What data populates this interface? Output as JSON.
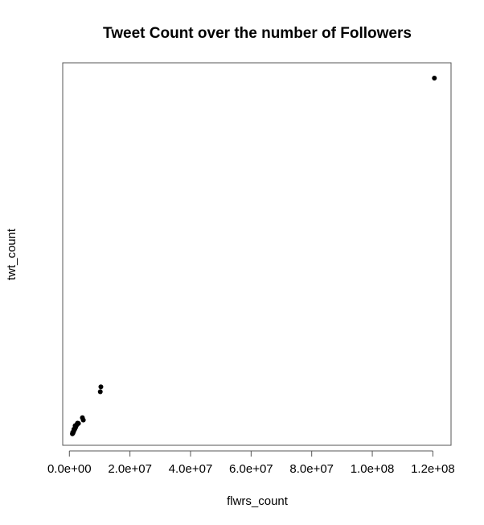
{
  "chart_data": {
    "type": "scatter",
    "title": "Tweet Count over the number of Followers",
    "xlabel": "flwrs_count",
    "ylabel": "twt_count",
    "xlim": [
      -2200000,
      126000000
    ],
    "ylim": [
      0,
      100
    ],
    "y_ticks_shown": false,
    "grid": false,
    "x_ticks": [
      0,
      20000000,
      40000000,
      60000000,
      80000000,
      100000000,
      120000000
    ],
    "x_tick_labels": [
      "0.0e+00",
      "2.0e+07",
      "4.0e+07",
      "6.0e+07",
      "8.0e+07",
      "1.0e+08",
      "1.2e+08"
    ],
    "point_color": "#000000",
    "x": [
      1000000,
      1200000,
      1400000,
      1600000,
      1800000,
      2000000,
      2200000,
      2500000,
      2700000,
      1100000,
      1500000,
      1900000,
      2400000,
      3000000,
      4300000,
      4600000,
      10200000,
      10400000,
      120500000
    ],
    "y": [
      3,
      3.2,
      3.6,
      4,
      4.3,
      4.6,
      5,
      5.5,
      5.8,
      3.4,
      4.2,
      5.1,
      5.3,
      5.7,
      7.2,
      6.6,
      14,
      15.3,
      96
    ]
  }
}
